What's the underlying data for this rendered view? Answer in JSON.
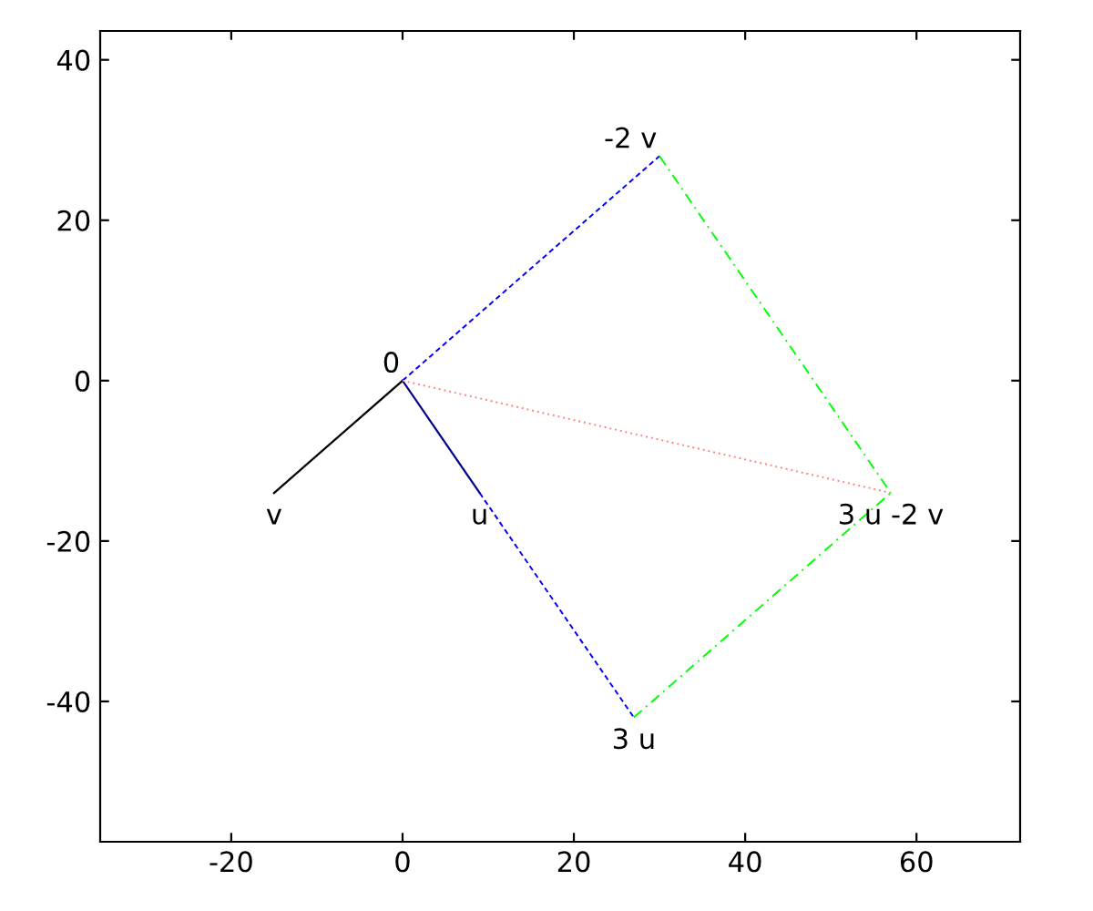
{
  "chart_data": {
    "type": "line",
    "xlim": [
      -35.3,
      72.1
    ],
    "ylim": [
      -57.5,
      43.6
    ],
    "xticks": [
      -20,
      0,
      20,
      40,
      60
    ],
    "yticks": [
      -40,
      -20,
      0,
      20,
      40
    ],
    "grid": false,
    "legend": false,
    "marker": "none",
    "series": [
      {
        "x": [
          0,
          -15
        ],
        "values": [
          0,
          -14
        ],
        "color": "#000000",
        "line_style": "solid"
      },
      {
        "x": [
          0,
          9
        ],
        "values": [
          0,
          -14
        ],
        "color": "#00008b",
        "line_style": "solid"
      },
      {
        "x": [
          0,
          30
        ],
        "values": [
          0,
          28
        ],
        "color": "#0000ff",
        "line_style": "dashed"
      },
      {
        "x": [
          9,
          27
        ],
        "values": [
          -14,
          -42
        ],
        "color": "#0000ff",
        "line_style": "dashed"
      },
      {
        "x": [
          30,
          57
        ],
        "values": [
          28,
          -14
        ],
        "color": "#00ff00",
        "line_style": "dashdot"
      },
      {
        "x": [
          27,
          57
        ],
        "values": [
          -42,
          -14
        ],
        "color": "#00ff00",
        "line_style": "dashdot"
      },
      {
        "x": [
          0,
          57
        ],
        "values": [
          0,
          -14
        ],
        "color": "#ff8080",
        "line_style": "dotted"
      }
    ],
    "annotations": [
      {
        "text": "0",
        "x": 0,
        "y": 0
      },
      {
        "text": "v",
        "x": -15,
        "y": -14
      },
      {
        "text": "u",
        "x": 9,
        "y": -14
      },
      {
        "text": "-2 v",
        "x": 30,
        "y": 28
      },
      {
        "text": "3 u",
        "x": 27,
        "y": -42
      },
      {
        "text": "3 u -2 v",
        "x": 57,
        "y": -14
      }
    ]
  }
}
